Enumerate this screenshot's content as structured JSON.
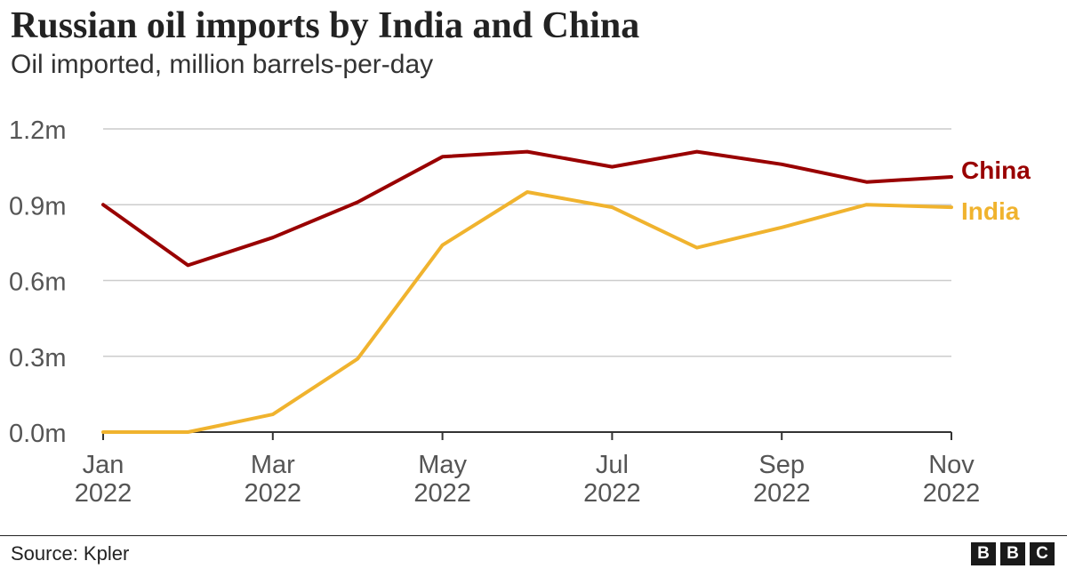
{
  "chart_data": {
    "type": "line",
    "title": "Russian oil imports by India and China",
    "subtitle": "Oil imported, million barrels-per-day",
    "xlabel": "",
    "ylabel": "",
    "ylim": [
      0,
      1.2
    ],
    "y_ticks": [
      0,
      0.3,
      0.6,
      0.9,
      1.2
    ],
    "y_tick_labels": [
      "0.0m",
      "0.3m",
      "0.6m",
      "0.9m",
      "1.2m"
    ],
    "x_tick_positions": [
      0,
      2,
      4,
      6,
      8,
      10
    ],
    "x_tick_labels": [
      [
        "Jan",
        "2022"
      ],
      [
        "Mar",
        "2022"
      ],
      [
        "May",
        "2022"
      ],
      [
        "Jul",
        "2022"
      ],
      [
        "Sep",
        "2022"
      ],
      [
        "Nov",
        "2022"
      ]
    ],
    "categories": [
      "Jan 2022",
      "Feb 2022",
      "Mar 2022",
      "Apr 2022",
      "May 2022",
      "Jun 2022",
      "Jul 2022",
      "Aug 2022",
      "Sep 2022",
      "Oct 2022",
      "Nov 2022"
    ],
    "grid": true,
    "legend": "inline-right",
    "series": [
      {
        "name": "China",
        "color": "#990000",
        "values": [
          0.9,
          0.66,
          0.77,
          0.91,
          1.09,
          1.11,
          1.05,
          1.11,
          1.06,
          0.99,
          1.01
        ]
      },
      {
        "name": "India",
        "color": "#f0b32e",
        "values": [
          0.0,
          0.0,
          0.07,
          0.29,
          0.74,
          0.95,
          0.89,
          0.73,
          0.81,
          0.9,
          0.89
        ]
      }
    ]
  },
  "footer": {
    "source": "Source: Kpler",
    "logo_letters": [
      "B",
      "B",
      "C"
    ]
  }
}
